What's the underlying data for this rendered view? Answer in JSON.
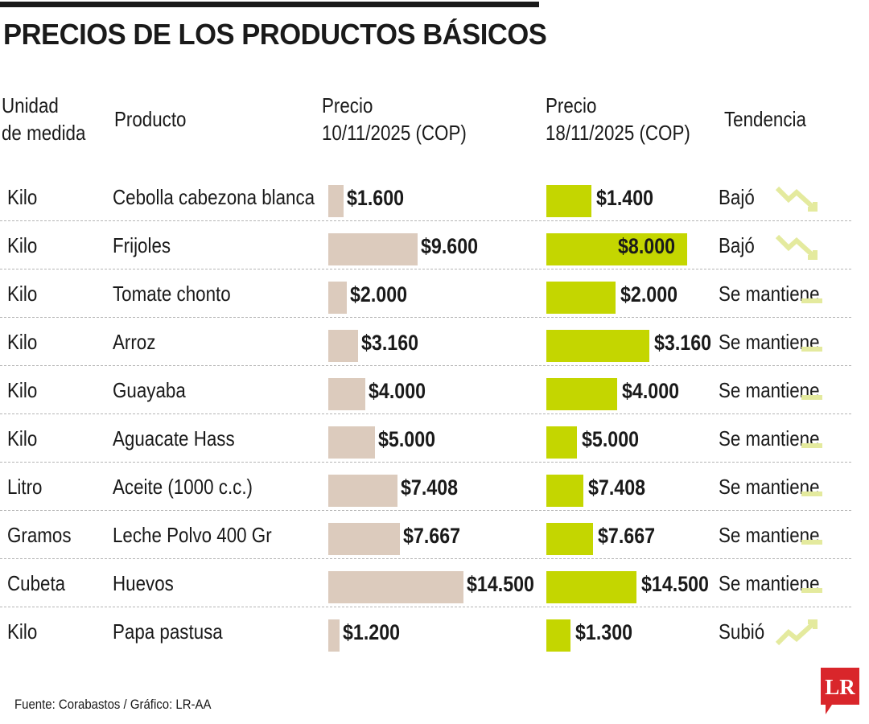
{
  "chart_data": {
    "type": "bar",
    "title": "PRECIOS DE LOS PRODUCTOS BÁSICOS",
    "columns": {
      "unit": [
        "Unidad",
        "de medida"
      ],
      "product": "Producto",
      "price_old": [
        "Precio",
        "10/11/2025 (COP)"
      ],
      "price_new": [
        "Precio",
        "18/11/2025 (COP)"
      ],
      "trend": "Tendencia"
    },
    "rows": [
      {
        "unit": "Kilo",
        "product": "Cebolla cabezona blanca",
        "old": 1600,
        "old_label": "$1.600",
        "new": 1400,
        "new_label": "$1.400",
        "trend": "Bajó",
        "trend_type": "down"
      },
      {
        "unit": "Kilo",
        "product": "Frijoles",
        "old": 9600,
        "old_label": "$9.600",
        "new": 8000,
        "new_label": "$8.000",
        "trend": "Bajó",
        "trend_type": "down"
      },
      {
        "unit": "Kilo",
        "product": "Tomate chonto",
        "old": 2000,
        "old_label": "$2.000",
        "new": 2000,
        "new_label": "$2.000",
        "trend": "Se mantiene",
        "trend_type": "flat"
      },
      {
        "unit": "Kilo",
        "product": "Arroz",
        "old": 3160,
        "old_label": "$3.160",
        "new": 3160,
        "new_label": "$3.160",
        "trend": "Se mantiene",
        "trend_type": "flat"
      },
      {
        "unit": "Kilo",
        "product": "Guayaba",
        "old": 4000,
        "old_label": "$4.000",
        "new": 4000,
        "new_label": "$4.000",
        "trend": "Se mantiene",
        "trend_type": "flat"
      },
      {
        "unit": "Kilo",
        "product": "Aguacate Hass",
        "old": 5000,
        "old_label": "$5.000",
        "new": 5000,
        "new_label": "$5.000",
        "trend": "Se mantiene",
        "trend_type": "flat"
      },
      {
        "unit": "Litro",
        "product": "Aceite (1000 c.c.)",
        "old": 7408,
        "old_label": "$7.408",
        "new": 7408,
        "new_label": "$7.408",
        "trend": "Se mantiene",
        "trend_type": "flat"
      },
      {
        "unit": "Gramos",
        "product": "Leche Polvo 400 Gr",
        "old": 7667,
        "old_label": "$7.667",
        "new": 7667,
        "new_label": "$7.667",
        "trend": "Se mantiene",
        "trend_type": "flat"
      },
      {
        "unit": "Cubeta",
        "product": "Huevos",
        "old": 14500,
        "old_label": "$14.500",
        "new": 14500,
        "new_label": "$14.500",
        "trend": "Se mantiene",
        "trend_type": "flat"
      },
      {
        "unit": "Kilo",
        "product": "Papa pastusa",
        "old": 1200,
        "old_label": "$1.200",
        "new": 1300,
        "new_label": "$1.300",
        "trend": "Subió",
        "trend_type": "up"
      }
    ]
  },
  "source": "Fuente: Corabastos / Gráfico: LR-AA",
  "logo": "LR",
  "colors": {
    "old_bar": "#dccbbd",
    "new_bar": "#c4d600",
    "trend_icon": "#e4ea9e",
    "logo_bg": "#d9262b",
    "ink": "#1a1a1a"
  }
}
